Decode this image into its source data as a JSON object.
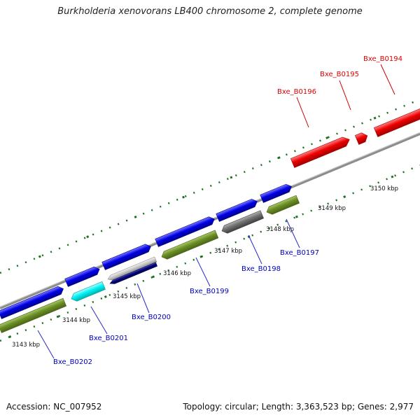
{
  "title": "Burkholderia xenovorans LB400 chromosome 2, complete genome",
  "footer": {
    "accession_label": "Accession:",
    "accession_value": "NC_007952",
    "topology_label": "Topology:",
    "topology_value": "circular",
    "length_label": "Length:",
    "length_value": "3,363,523 bp",
    "genes_label": "Genes:",
    "genes_value": "2,977"
  },
  "colors": {
    "forward_cds": "#0000e6",
    "reverse_cds": "#6b8e23",
    "highlighted": "#ee0000",
    "cyan_cds": "#00f2f2",
    "gray_cds": "#707070",
    "navy_cds": "#000080",
    "backbone": "#8c8c8c",
    "ticks": "#1e6f1e",
    "label_blue": "#0000bb",
    "label_red": "#dd0000"
  },
  "scale_labels": [
    "3143 kbp",
    "3144 kbp",
    "3145 kbp",
    "3146 kbp",
    "3147 kbp",
    "3148 kbp",
    "3149 kbp",
    "3150 kbp"
  ],
  "gene_labels": [
    "Bxe_B0202",
    "Bxe_B0201",
    "Bxe_B0200",
    "Bxe_B0199",
    "Bxe_B0198",
    "Bxe_B0197",
    "Bxe_B0196",
    "Bxe_B0195",
    "Bxe_B0194"
  ]
}
